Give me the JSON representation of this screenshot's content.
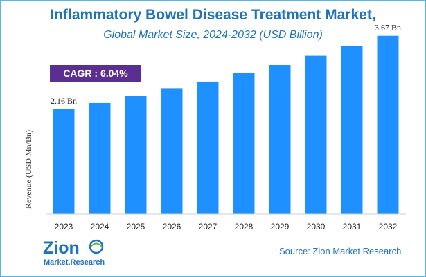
{
  "cagr_label": "CAGR :",
  "cagr_value": "6.04%",
  "source": "Source: Zion Market Research",
  "logo": {
    "name": "zion-market-research-logo",
    "text_main": "Zion",
    "text_sub": "Market.Research"
  },
  "colors": {
    "bar": "#1e90ff",
    "title": "#1f73b7",
    "cagr_bg": "#5b2f91",
    "frame": "#5ab7dc",
    "divider": "#e8a04a"
  },
  "chart_data": {
    "type": "bar",
    "title": "Inflammatory Bowel Disease Treatment Market,",
    "subtitle": "Global Market Size, 2024-2032 (USD Billion)",
    "xlabel": "",
    "ylabel": "Revenue (USD Mn/Bn)",
    "categories": [
      "2023",
      "2024",
      "2025",
      "2026",
      "2027",
      "2028",
      "2029",
      "2030",
      "2031",
      "2032"
    ],
    "values": [
      2.16,
      2.29,
      2.43,
      2.58,
      2.73,
      2.9,
      3.07,
      3.26,
      3.46,
      3.67
    ],
    "data_labels": [
      {
        "index": 0,
        "text": "2.16 Bn"
      },
      {
        "index": 9,
        "text": "3.67 Bn"
      }
    ],
    "ylim": [
      0,
      4.05
    ],
    "grid": false,
    "legend": "none"
  }
}
